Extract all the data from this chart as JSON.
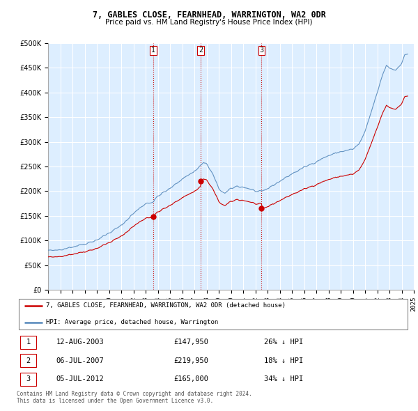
{
  "title": "7, GABLES CLOSE, FEARNHEAD, WARRINGTON, WA2 0DR",
  "subtitle": "Price paid vs. HM Land Registry's House Price Index (HPI)",
  "ylim": [
    0,
    500000
  ],
  "yticks": [
    0,
    50000,
    100000,
    150000,
    200000,
    250000,
    300000,
    350000,
    400000,
    450000,
    500000
  ],
  "legend_label_red": "7, GABLES CLOSE, FEARNHEAD, WARRINGTON, WA2 0DR (detached house)",
  "legend_label_blue": "HPI: Average price, detached house, Warrington",
  "footer": "Contains HM Land Registry data © Crown copyright and database right 2024.\nThis data is licensed under the Open Government Licence v3.0.",
  "transactions": [
    {
      "num": 1,
      "date": "12-AUG-2003",
      "price": 147950,
      "pct": "26%",
      "dir": "↓",
      "year": 2003.617
    },
    {
      "num": 2,
      "date": "06-JUL-2007",
      "price": 219950,
      "pct": "18%",
      "dir": "↓",
      "year": 2007.508
    },
    {
      "num": 3,
      "date": "05-JUL-2012",
      "price": 165000,
      "pct": "34%",
      "dir": "↓",
      "year": 2012.508
    }
  ],
  "red_color": "#cc0000",
  "blue_color": "#5588bb",
  "vline_color": "#cc0000",
  "grid_color": "#cccccc",
  "background_color": "#ddeeff",
  "xlim": [
    1995.0,
    2025.0
  ],
  "xticks": [
    1995,
    1996,
    1997,
    1998,
    1999,
    2000,
    2001,
    2002,
    2003,
    2004,
    2005,
    2006,
    2007,
    2008,
    2009,
    2010,
    2011,
    2012,
    2013,
    2014,
    2015,
    2016,
    2017,
    2018,
    2019,
    2020,
    2021,
    2022,
    2023,
    2024,
    2025
  ]
}
